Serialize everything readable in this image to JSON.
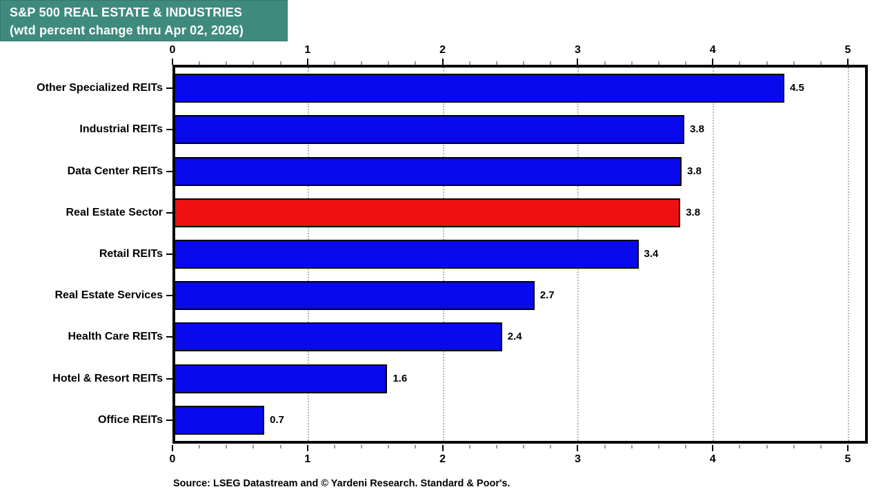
{
  "title": {
    "line1": "S&P 500 REAL ESTATE & INDUSTRIES",
    "line2": "(wtd percent change thru Apr 02, 2026)"
  },
  "source": "Source: LSEG Datastream and © Yardeni Research. Standard & Poor's.",
  "colors": {
    "title_bg": "#3E8B7D",
    "title_text": "#FFFFFF",
    "bar_default": "#0909EE",
    "bar_highlight": "#EE1111",
    "bar_border": "#000000",
    "gridline": "#B8B8B8",
    "axis": "#000000"
  },
  "chart_data": {
    "type": "bar",
    "orientation": "horizontal",
    "title": "S&P 500 REAL ESTATE & INDUSTRIES (wtd percent change thru Apr 02, 2026)",
    "categories": [
      "Other Specialized REITs",
      "Industrial REITs",
      "Data Center REITs",
      "Real Estate Sector",
      "Retail REITs",
      "Real Estate Services",
      "Health Care REITs",
      "Hotel & Resort REITs",
      "Office REITs"
    ],
    "values": [
      4.5,
      3.8,
      3.8,
      3.8,
      3.4,
      2.7,
      2.4,
      1.6,
      0.7
    ],
    "value_labels": [
      "4.5",
      "3.8",
      "3.8",
      "3.8",
      "3.4",
      "2.7",
      "2.4",
      "1.6",
      "0.7"
    ],
    "values_plotted": [
      4.53,
      3.79,
      3.77,
      3.76,
      3.45,
      2.68,
      2.44,
      1.59,
      0.68
    ],
    "highlight_index": 3,
    "highlight_category": "Real Estate Sector",
    "xlim": [
      0,
      5.15
    ],
    "x_major_ticks": [
      0,
      1,
      2,
      3,
      4,
      5
    ],
    "x_major_tick_labels": [
      "0",
      "1",
      "2",
      "3",
      "4",
      "5"
    ],
    "x_minor_step": 0.2,
    "grid": "vertical dotted at major ticks",
    "axes_shown": [
      "top",
      "bottom"
    ],
    "legend": "none"
  }
}
